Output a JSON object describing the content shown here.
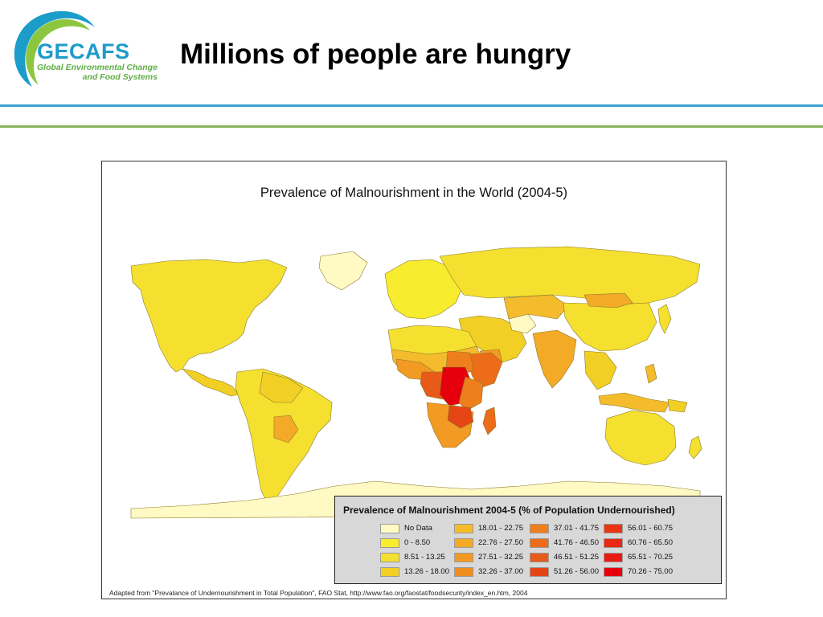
{
  "header": {
    "logo_name": "GECAFS",
    "logo_line1": "Global Environmental Change",
    "logo_line2": "and Food Systems",
    "title": "Millions of people are hungry"
  },
  "figure": {
    "map_title": "Prevalence of Malnourishment in the World (2004-5)",
    "legend_title": "Prevalence of Malnourishment 2004-5 (% of Population Undernourished)",
    "legend": [
      {
        "label": "No Data",
        "color": "#fff9c4"
      },
      {
        "label": "0 - 8.50",
        "color": "#f7ec2e"
      },
      {
        "label": "8.51 - 13.25",
        "color": "#f5e030"
      },
      {
        "label": "13.26 - 18.00",
        "color": "#f2cf24"
      },
      {
        "label": "18.01 - 22.75",
        "color": "#f4bb2c"
      },
      {
        "label": "22.76 - 27.50",
        "color": "#f3aa27"
      },
      {
        "label": "27.51 - 32.25",
        "color": "#f29a23"
      },
      {
        "label": "32.26 - 37.00",
        "color": "#ef8e20"
      },
      {
        "label": "37.01 - 41.75",
        "color": "#ee7f1c"
      },
      {
        "label": "41.76 - 46.50",
        "color": "#ec6c19"
      },
      {
        "label": "46.51 - 51.25",
        "color": "#e85a17"
      },
      {
        "label": "51.26 - 56.00",
        "color": "#e54515"
      },
      {
        "label": "56.01 - 60.75",
        "color": "#e83615"
      },
      {
        "label": "60.76 - 65.50",
        "color": "#e82812"
      },
      {
        "label": "65.51 - 70.25",
        "color": "#e91a10"
      },
      {
        "label": "70.26 - 75.00",
        "color": "#e5000c"
      }
    ],
    "source": "Adapted from \"Prevalance of Undernourishment in Total Population\", FAO Stat, http://www.fao.org/faostat/foodsecurity/index_en.htm, 2004"
  },
  "colors": {
    "accent_blue": "#3aa3cf",
    "accent_green": "#8ab35e",
    "land_default": "#f5e030",
    "antarctica": "#fff9c4"
  }
}
